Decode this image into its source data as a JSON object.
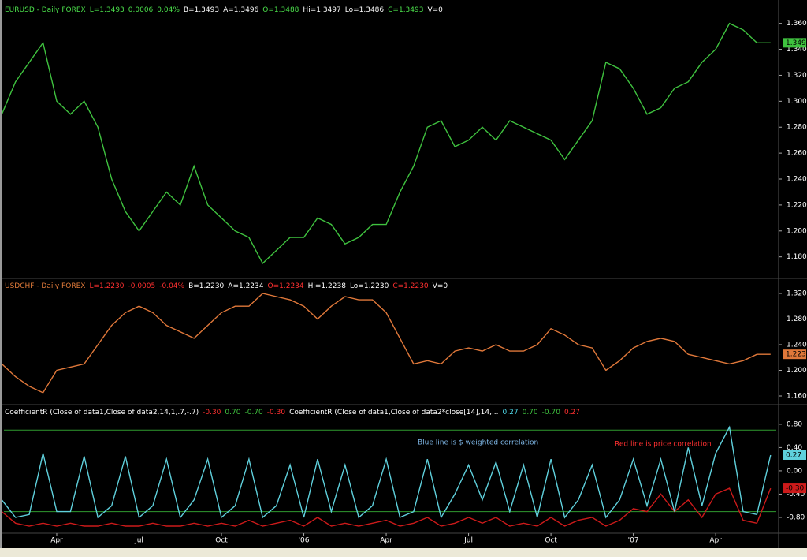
{
  "chart_data": [
    {
      "type": "line",
      "legend_text": [
        {
          "text": "EURUSD - Daily  FOREX",
          "color": "#4be04b"
        },
        {
          "text": "L=1.3493",
          "color": "#4be04b"
        },
        {
          "text": "0.0006",
          "color": "#4be04b"
        },
        {
          "text": "0.04%",
          "color": "#4be04b"
        },
        {
          "text": "B=1.3493",
          "color": "#ffffff"
        },
        {
          "text": "A=1.3496",
          "color": "#ffffff"
        },
        {
          "text": "O=1.3488",
          "color": "#4be04b"
        },
        {
          "text": "Hi=1.3497",
          "color": "#ffffff"
        },
        {
          "text": "Lo=1.3486",
          "color": "#ffffff"
        },
        {
          "text": "C=1.3493",
          "color": "#4be04b"
        },
        {
          "text": "V=0",
          "color": "#ffffff"
        }
      ],
      "series": [
        {
          "color": "#3fc23f",
          "last_label": "1.3493",
          "values": [
            1.29,
            1.315,
            1.33,
            1.345,
            1.3,
            1.29,
            1.3,
            1.28,
            1.24,
            1.215,
            1.2,
            1.215,
            1.23,
            1.22,
            1.25,
            1.22,
            1.21,
            1.2,
            1.195,
            1.175,
            1.185,
            1.195,
            1.195,
            1.21,
            1.205,
            1.19,
            1.195,
            1.205,
            1.205,
            1.23,
            1.25,
            1.28,
            1.285,
            1.265,
            1.27,
            1.28,
            1.27,
            1.285,
            1.28,
            1.275,
            1.27,
            1.255,
            1.27,
            1.285,
            1.33,
            1.325,
            1.31,
            1.29,
            1.295,
            1.31,
            1.315,
            1.33,
            1.34,
            1.36,
            1.355,
            1.345,
            1.345
          ]
        }
      ],
      "ylim": [
        1.164,
        1.375
      ],
      "yticks": [
        {
          "value": 1.18,
          "label": "1.1800"
        },
        {
          "value": 1.2,
          "label": "1.2000"
        },
        {
          "value": 1.22,
          "label": "1.2200"
        },
        {
          "value": 1.24,
          "label": "1.2400"
        },
        {
          "value": 1.26,
          "label": "1.2600"
        },
        {
          "value": 1.28,
          "label": "1.2800"
        },
        {
          "value": 1.3,
          "label": "1.3000"
        },
        {
          "value": 1.32,
          "label": "1.3200"
        },
        {
          "value": 1.34,
          "label": "1.3400"
        },
        {
          "value": 1.36,
          "label": "1.3600"
        }
      ]
    },
    {
      "type": "line",
      "legend_text": [
        {
          "text": "USDCHF - Daily  FOREX",
          "color": "#e07a3a"
        },
        {
          "text": "L=1.2230",
          "color": "#ff3030"
        },
        {
          "text": "-0.0005",
          "color": "#ff3030"
        },
        {
          "text": "-0.04%",
          "color": "#ff3030"
        },
        {
          "text": "B=1.2230",
          "color": "#ffffff"
        },
        {
          "text": "A=1.2234",
          "color": "#ffffff"
        },
        {
          "text": "O=1.2234",
          "color": "#ff3030"
        },
        {
          "text": "Hi=1.2238",
          "color": "#ffffff"
        },
        {
          "text": "Lo=1.2230",
          "color": "#ffffff"
        },
        {
          "text": "C=1.2230",
          "color": "#ff3030"
        },
        {
          "text": "V=0",
          "color": "#ffffff"
        }
      ],
      "series": [
        {
          "color": "#e0783a",
          "last_label": "1.2230",
          "values": [
            1.21,
            1.19,
            1.175,
            1.165,
            1.2,
            1.205,
            1.21,
            1.24,
            1.27,
            1.29,
            1.3,
            1.29,
            1.27,
            1.26,
            1.25,
            1.27,
            1.29,
            1.3,
            1.3,
            1.32,
            1.315,
            1.31,
            1.3,
            1.28,
            1.3,
            1.315,
            1.31,
            1.31,
            1.29,
            1.25,
            1.21,
            1.215,
            1.21,
            1.23,
            1.235,
            1.23,
            1.24,
            1.23,
            1.23,
            1.24,
            1.265,
            1.255,
            1.24,
            1.235,
            1.2,
            1.215,
            1.235,
            1.245,
            1.25,
            1.245,
            1.225,
            1.22,
            1.215,
            1.21,
            1.215,
            1.225,
            1.225
          ]
        }
      ],
      "ylim": [
        1.1477,
        1.3409
      ],
      "yticks": [
        {
          "value": 1.16,
          "label": "1.1600"
        },
        {
          "value": 1.2,
          "label": "1.2000"
        },
        {
          "value": 1.24,
          "label": "1.2400"
        },
        {
          "value": 1.28,
          "label": "1.2800"
        },
        {
          "value": 1.32,
          "label": "1.3200"
        }
      ]
    },
    {
      "type": "line",
      "legend_text": [
        {
          "text": "CoefficientR (Close of data1,Close of data2,14,1,.7,-.7)",
          "color": "#ffffff"
        },
        {
          "text": "-0.30",
          "color": "#ff3030"
        },
        {
          "text": "0.70",
          "color": "#3fc23f"
        },
        {
          "text": "-0.70",
          "color": "#3fc23f"
        },
        {
          "text": "-0.30",
          "color": "#ff3030"
        },
        {
          "text": "CoefficientR (Close of data1,Close of data2*close[14],14,...",
          "color": "#ffffff"
        },
        {
          "text": "0.27",
          "color": "#4fd8e8"
        },
        {
          "text": "0.70",
          "color": "#3fc23f"
        },
        {
          "text": "-0.70",
          "color": "#3fc23f"
        },
        {
          "text": "0.27",
          "color": "#ff3030"
        }
      ],
      "annotations": [
        {
          "text": "Blue line is $ weighted  correlation",
          "color": "#7fb8e8"
        },
        {
          "text": "Red line is price correlation",
          "color": "#ff3030"
        }
      ],
      "categories": [
        null,
        null,
        null,
        null,
        "Apr",
        null,
        null,
        null,
        null,
        null,
        "Jul",
        null,
        null,
        null,
        null,
        null,
        "Oct",
        null,
        null,
        null,
        null,
        null,
        "'06",
        null,
        null,
        null,
        null,
        null,
        "Apr",
        null,
        null,
        null,
        null,
        null,
        "Jul",
        null,
        null,
        null,
        null,
        null,
        "Oct",
        null,
        null,
        null,
        null,
        null,
        "'07",
        null,
        null,
        null,
        null,
        null,
        "Apr",
        null,
        null,
        null,
        null
      ],
      "series": [
        {
          "color": "#cc1a1a",
          "last_label": "-0.30",
          "values": [
            -0.7,
            -0.9,
            -0.95,
            -0.9,
            -0.95,
            -0.9,
            -0.95,
            -0.95,
            -0.9,
            -0.95,
            -0.95,
            -0.9,
            -0.95,
            -0.95,
            -0.9,
            -0.95,
            -0.9,
            -0.95,
            -0.85,
            -0.95,
            -0.9,
            -0.85,
            -0.95,
            -0.8,
            -0.95,
            -0.9,
            -0.95,
            -0.9,
            -0.85,
            -0.95,
            -0.9,
            -0.8,
            -0.95,
            -0.9,
            -0.8,
            -0.9,
            -0.8,
            -0.95,
            -0.9,
            -0.95,
            -0.8,
            -0.95,
            -0.85,
            -0.8,
            -0.95,
            -0.85,
            -0.65,
            -0.7,
            -0.4,
            -0.7,
            -0.5,
            -0.8,
            -0.4,
            -0.3,
            -0.85,
            -0.9,
            -0.3
          ]
        },
        {
          "color": "#5fd0dc",
          "last_label": "0.27",
          "values": [
            -0.5,
            -0.8,
            -0.75,
            0.3,
            -0.7,
            -0.7,
            0.25,
            -0.8,
            -0.6,
            0.25,
            -0.8,
            -0.6,
            0.2,
            -0.8,
            -0.5,
            0.2,
            -0.8,
            -0.6,
            0.2,
            -0.8,
            -0.6,
            0.1,
            -0.8,
            0.2,
            -0.7,
            0.1,
            -0.8,
            -0.6,
            0.2,
            -0.8,
            -0.7,
            0.2,
            -0.8,
            -0.4,
            0.1,
            -0.5,
            0.15,
            -0.7,
            0.1,
            -0.8,
            0.2,
            -0.8,
            -0.5,
            0.1,
            -0.8,
            -0.5,
            0.2,
            -0.6,
            0.2,
            -0.7,
            0.4,
            -0.6,
            0.3,
            0.75,
            -0.7,
            -0.75,
            0.27
          ]
        }
      ],
      "hlines": [
        0.7,
        -0.7
      ],
      "hline_color": "#2f9a2f",
      "ylim": [
        -1.058,
        1.11
      ],
      "yticks": [
        {
          "value": 0.8,
          "label": "0.80"
        },
        {
          "value": 0.4,
          "label": "0.40"
        },
        {
          "value": 0,
          "label": "0.00"
        },
        {
          "value": -0.4,
          "label": "-0.40"
        },
        {
          "value": -0.8,
          "label": "-0.80"
        }
      ]
    }
  ]
}
